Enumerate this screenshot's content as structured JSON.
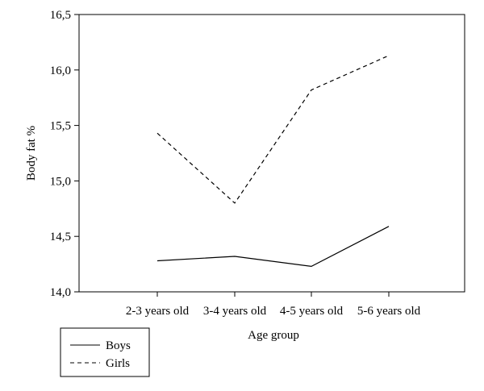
{
  "chart_data": {
    "type": "line",
    "title": "",
    "xlabel": "Age group",
    "ylabel": "Body fat %",
    "categories": [
      "2-3 years old",
      "3-4 years old",
      "4-5 years old",
      "5-6 years old"
    ],
    "ylim": [
      14.0,
      16.5
    ],
    "yticks": [
      "14,0",
      "14,5",
      "15,0",
      "15,5",
      "16,0",
      "16,5"
    ],
    "grid": false,
    "legend_position": "bottom-left",
    "series": [
      {
        "name": "Boys",
        "style": "solid",
        "color": "#000000",
        "values": [
          14.28,
          14.32,
          14.23,
          14.59
        ]
      },
      {
        "name": "Girls",
        "style": "dashed",
        "color": "#000000",
        "values": [
          15.43,
          14.8,
          15.82,
          16.13
        ]
      }
    ]
  }
}
